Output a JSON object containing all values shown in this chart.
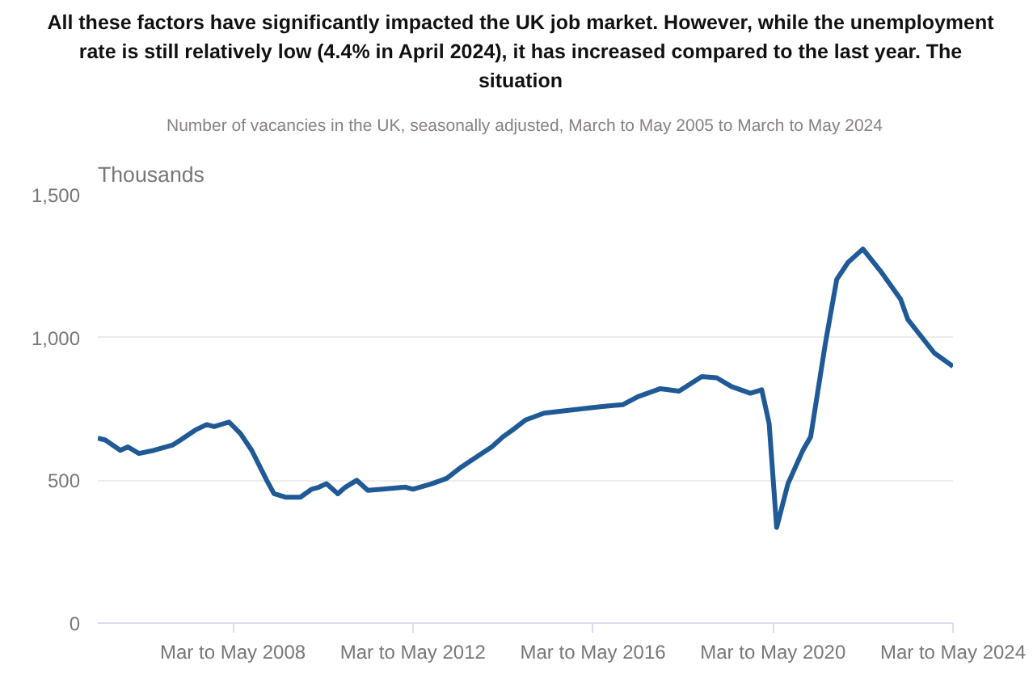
{
  "chart_data": {
    "type": "line",
    "annotations": [
      "All these factors have significantly impacted the UK job market. However, while the unemployment rate is still relatively low (4.4% in April 2024), it has increased compared to the last year. The situation"
    ],
    "subtitle": "Number of vacancies in the UK, seasonally adjusted, March to May 2005 to March to May 2024",
    "ylabel": "Thousands",
    "series": [
      {
        "color": "#1f5a96",
        "x": [
          "2005-04",
          "2005-06",
          "2005-10",
          "2005-12",
          "2006-03",
          "2006-07",
          "2006-12",
          "2007-02",
          "2007-06",
          "2007-09",
          "2007-11",
          "2008-03",
          "2008-06",
          "2008-09",
          "2009-01",
          "2009-03",
          "2009-06",
          "2009-10",
          "2010-01",
          "2010-03",
          "2010-05",
          "2010-08",
          "2010-10",
          "2011-01",
          "2011-04",
          "2011-08",
          "2012-02",
          "2012-04",
          "2012-09",
          "2013-01",
          "2013-05",
          "2013-09",
          "2014-01",
          "2014-04",
          "2014-07",
          "2014-10",
          "2015-03",
          "2015-10",
          "2016-06",
          "2016-12",
          "2017-04",
          "2017-10",
          "2018-03",
          "2018-09",
          "2019-01",
          "2019-05",
          "2019-10",
          "2020-01",
          "2020-03",
          "2020-05",
          "2020-08",
          "2020-12",
          "2021-02",
          "2021-06",
          "2021-09",
          "2021-12",
          "2022-04",
          "2022-09",
          "2023-02",
          "2023-04",
          "2023-11",
          "2024-04"
        ],
        "values": [
          648,
          641,
          605,
          617,
          594,
          605,
          624,
          641,
          676,
          695,
          688,
          704,
          664,
          605,
          500,
          453,
          441,
          441,
          469,
          476,
          488,
          453,
          476,
          500,
          465,
          469,
          476,
          469,
          488,
          507,
          547,
          582,
          617,
          652,
          680,
          711,
          735,
          746,
          758,
          765,
          793,
          821,
          812,
          863,
          859,
          828,
          805,
          817,
          699,
          335,
          488,
          606,
          652,
          981,
          1204,
          1263,
          1310,
          1227,
          1134,
          1063,
          946,
          899
        ]
      }
    ],
    "xlim": [
      "2005-04",
      "2024-04"
    ],
    "xticks": [
      {
        "value": "2008-04",
        "label": "Mar to May 2008"
      },
      {
        "value": "2012-04",
        "label": "Mar to May 2012"
      },
      {
        "value": "2016-04",
        "label": "Mar to May 2016"
      },
      {
        "value": "2020-04",
        "label": "Mar to May 2020"
      },
      {
        "value": "2024-04",
        "label": "Mar to May 2024"
      }
    ],
    "ylim": [
      0,
      1500
    ],
    "yticks": [
      0,
      500,
      {
        "value": 1000,
        "label": "1,000"
      },
      {
        "value": 1500,
        "label": "1,500"
      }
    ],
    "grid": "y",
    "line_style": "solid"
  }
}
